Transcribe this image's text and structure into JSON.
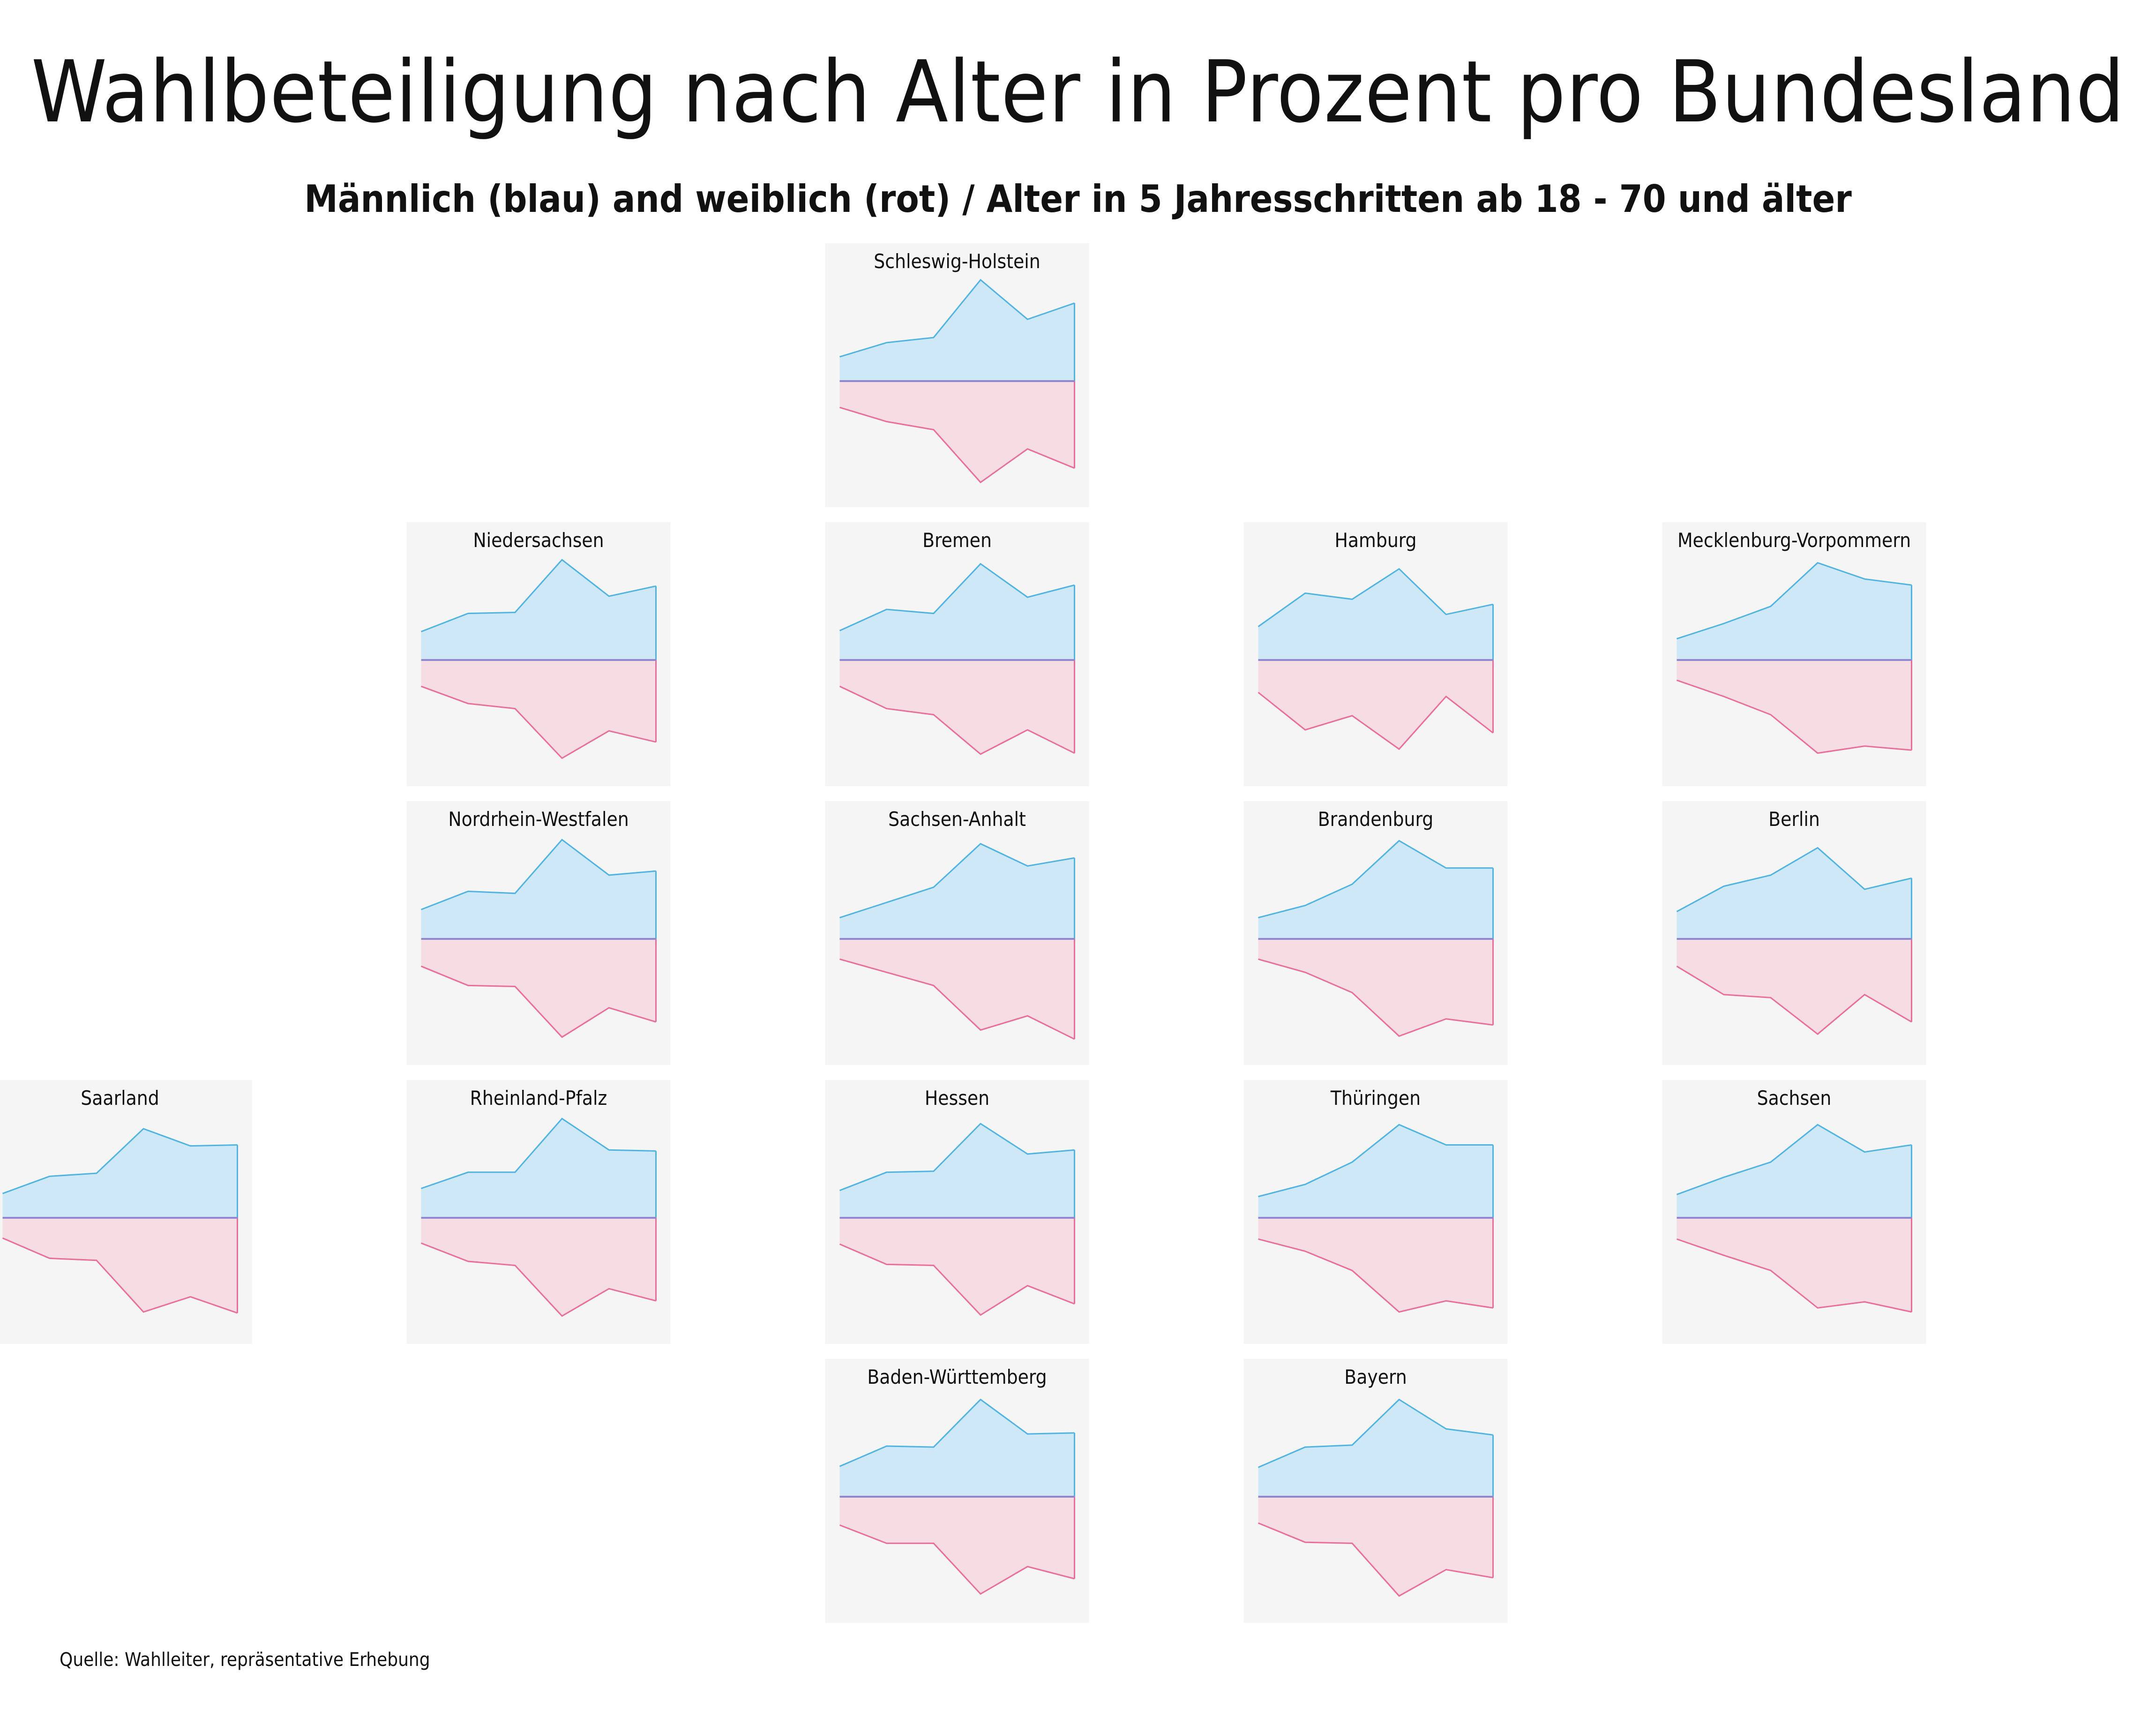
{
  "title": "Wahlbeteiligung nach Alter in Prozent pro Bundesland",
  "subtitle": "Männlich (blau) and weiblich (rot) / Alter in 5 Jahresschritten ab 18 - 70 und älter",
  "source": "Quelle: Wahlleiter, repräsentative Erhebung",
  "colors": {
    "male_line": "#4fb3e4",
    "male_fill": "#cfe8f7",
    "female_line": "#ec6d99",
    "female_fill": "#f6dde4",
    "axis": "#8f87d4",
    "panel_bg": "#f5f5f5"
  },
  "chart_data": {
    "type": "area",
    "layout": "tile-grid",
    "ylim": [
      0,
      100
    ],
    "panels": [
      {
        "name": "Schleswig-Holstein",
        "row": 0,
        "col": 2,
        "male": [
          24,
          38,
          43,
          100,
          61,
          77
        ],
        "female": [
          26,
          40,
          48,
          100,
          67,
          86
        ]
      },
      {
        "name": "Niedersachsen",
        "row": 1,
        "col": 1,
        "male": [
          28,
          46,
          47,
          99,
          63,
          73
        ],
        "female": [
          26,
          43,
          48,
          97,
          70,
          81
        ]
      },
      {
        "name": "Bremen",
        "row": 1,
        "col": 2,
        "male": [
          29,
          50,
          46,
          95,
          62,
          74
        ],
        "female": [
          26,
          48,
          54,
          93,
          69,
          92
        ]
      },
      {
        "name": "Hamburg",
        "row": 1,
        "col": 3,
        "male": [
          33,
          66,
          60,
          90,
          45,
          55
        ],
        "female": [
          32,
          69,
          55,
          88,
          36,
          72
        ]
      },
      {
        "name": "Mecklenburg-Vorpommern",
        "row": 1,
        "col": 4,
        "male": [
          21,
          36,
          53,
          96,
          80,
          74
        ],
        "female": [
          20,
          36,
          54,
          92,
          85,
          89
        ]
      },
      {
        "name": "Nordrhein-Westfalen",
        "row": 2,
        "col": 1,
        "male": [
          29,
          47,
          45,
          98,
          63,
          67
        ],
        "female": [
          27,
          46,
          47,
          97,
          68,
          82
        ]
      },
      {
        "name": "Sachsen-Anhalt",
        "row": 2,
        "col": 2,
        "male": [
          21,
          36,
          51,
          94,
          72,
          80
        ],
        "female": [
          20,
          33,
          46,
          90,
          76,
          99
        ]
      },
      {
        "name": "Brandenburg",
        "row": 2,
        "col": 3,
        "male": [
          21,
          33,
          54,
          97,
          70,
          70
        ],
        "female": [
          20,
          33,
          53,
          96,
          79,
          85
        ]
      },
      {
        "name": "Berlin",
        "row": 2,
        "col": 4,
        "male": [
          27,
          52,
          63,
          90,
          49,
          60
        ],
        "female": [
          27,
          55,
          58,
          94,
          55,
          82
        ]
      },
      {
        "name": "Saarland",
        "row": 3,
        "col": 0,
        "male": [
          24,
          41,
          44,
          88,
          71,
          72
        ],
        "female": [
          20,
          40,
          42,
          93,
          78,
          94
        ]
      },
      {
        "name": "Rheinland-Pfalz",
        "row": 3,
        "col": 1,
        "male": [
          29,
          45,
          45,
          98,
          67,
          66
        ],
        "female": [
          25,
          43,
          47,
          97,
          70,
          82
        ]
      },
      {
        "name": "Hessen",
        "row": 3,
        "col": 2,
        "male": [
          27,
          45,
          46,
          93,
          63,
          67
        ],
        "female": [
          26,
          46,
          47,
          96,
          67,
          85
        ]
      },
      {
        "name": "Thüringen",
        "row": 3,
        "col": 3,
        "male": [
          21,
          33,
          55,
          92,
          72,
          72
        ],
        "female": [
          21,
          33,
          52,
          93,
          82,
          89
        ]
      },
      {
        "name": "Sachsen",
        "row": 3,
        "col": 4,
        "male": [
          23,
          40,
          55,
          92,
          65,
          72
        ],
        "female": [
          21,
          37,
          52,
          89,
          83,
          93
        ]
      },
      {
        "name": "Baden-Württemberg",
        "row": 4,
        "col": 2,
        "male": [
          30,
          50,
          49,
          96,
          62,
          63
        ],
        "female": [
          28,
          46,
          46,
          96,
          69,
          81
        ]
      },
      {
        "name": "Bayern",
        "row": 4,
        "col": 3,
        "male": [
          29,
          49,
          51,
          96,
          67,
          61
        ],
        "female": [
          26,
          45,
          46,
          98,
          72,
          80
        ]
      }
    ]
  }
}
